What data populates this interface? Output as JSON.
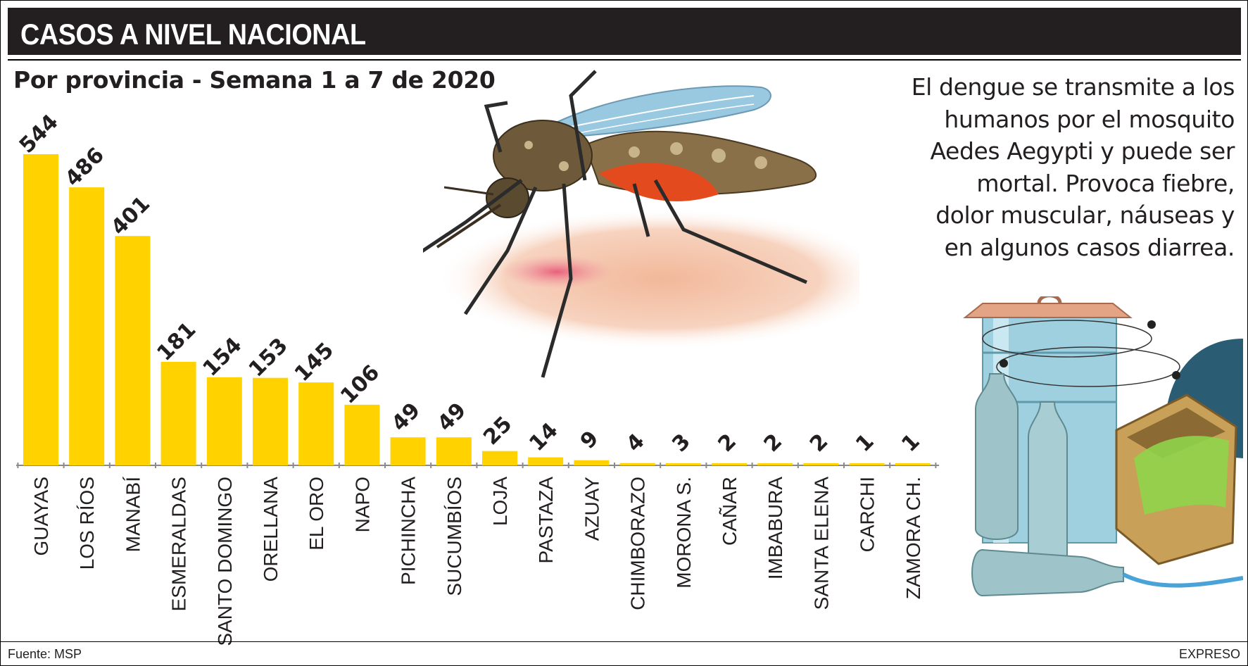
{
  "header": {
    "title": "CASOS A NIVEL NACIONAL"
  },
  "subtitle": "Por provincia - Semana 1 a 7 de 2020",
  "info_lines": [
    "El dengue se transmite a los",
    "humanos por el mosquito",
    "Aedes Aegypti y puede ser",
    "mortal. Provoca fiebre,",
    "dolor muscular, náuseas y",
    "en algunos casos diarrea."
  ],
  "footer": {
    "source": "Fuente: MSP",
    "brand": "EXPRESO"
  },
  "colors": {
    "bar": "#ffd200",
    "header_bg": "#231f20",
    "text": "#231f20"
  },
  "illustrations": [
    "mosquito-illustration",
    "water-container-illustration"
  ],
  "chart_data": {
    "type": "bar",
    "title": "",
    "xlabel": "",
    "ylabel": "",
    "ylim": [
      0,
      544
    ],
    "grid": false,
    "categories": [
      "GUAYAS",
      "LOS RÍOS",
      "MANABÍ",
      "ESMERALDAS",
      "SANTO DOMINGO",
      "ORELLANA",
      "EL ORO",
      "NAPO",
      "PICHINCHA",
      "SUCUMBÍOS",
      "LOJA",
      "PASTAZA",
      "AZUAY",
      "CHIMBORAZO",
      "MORONA S.",
      "CAÑAR",
      "IMBABURA",
      "SANTA ELENA",
      "CARCHI",
      "ZAMORA CH."
    ],
    "values": [
      544,
      486,
      401,
      181,
      154,
      153,
      145,
      106,
      49,
      49,
      25,
      14,
      9,
      4,
      3,
      2,
      2,
      2,
      1,
      1
    ]
  }
}
